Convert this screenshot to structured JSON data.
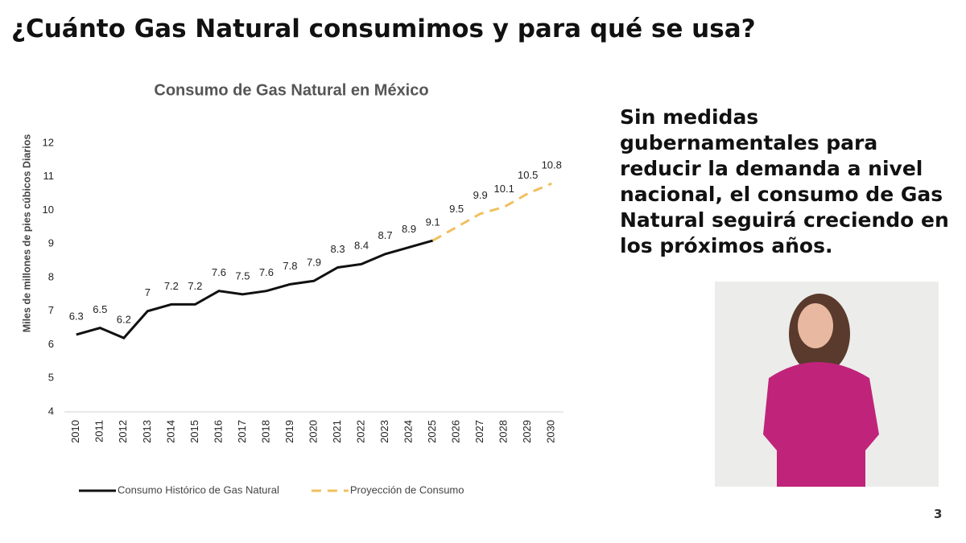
{
  "slide": {
    "heading": "¿Cuánto Gas Natural consumimos y para qué se usa?",
    "body": "Sin medidas gubernamentales para reducir la demanda a nivel nacional, el consumo de Gas Natural seguirá creciendo en los próximos años.",
    "page_number": "3"
  },
  "chart_data": {
    "type": "line",
    "title": "Consumo de Gas Natural en México",
    "y_label": "Miles de millones de pies cúbicos Diarios",
    "categories": [
      "2010",
      "2011",
      "2012",
      "2013",
      "2014",
      "2015",
      "2016",
      "2017",
      "2018",
      "2019",
      "2020",
      "2021",
      "2022",
      "2023",
      "2024",
      "2025",
      "2026",
      "2027",
      "2028",
      "2029",
      "2030"
    ],
    "series": [
      {
        "name": "Consumo Histórico de Gas Natural",
        "color": "#111111",
        "dashed": false,
        "values": [
          6.3,
          6.5,
          6.2,
          7,
          7.2,
          7.2,
          7.6,
          7.5,
          7.6,
          7.8,
          7.9,
          8.3,
          8.4,
          8.7,
          8.9,
          9.1,
          null,
          null,
          null,
          null,
          null
        ]
      },
      {
        "name": "Proyección de Consumo",
        "color": "#f0c060",
        "dashed": true,
        "values": [
          null,
          null,
          null,
          null,
          null,
          null,
          null,
          null,
          null,
          null,
          null,
          null,
          null,
          null,
          null,
          9.1,
          9.5,
          9.9,
          10.1,
          10.5,
          10.8
        ]
      }
    ],
    "ylim": [
      4,
      12
    ],
    "yticks": [
      4,
      5,
      6,
      7,
      8,
      9,
      10,
      11,
      12
    ],
    "grid": false,
    "legend": "bottom"
  }
}
